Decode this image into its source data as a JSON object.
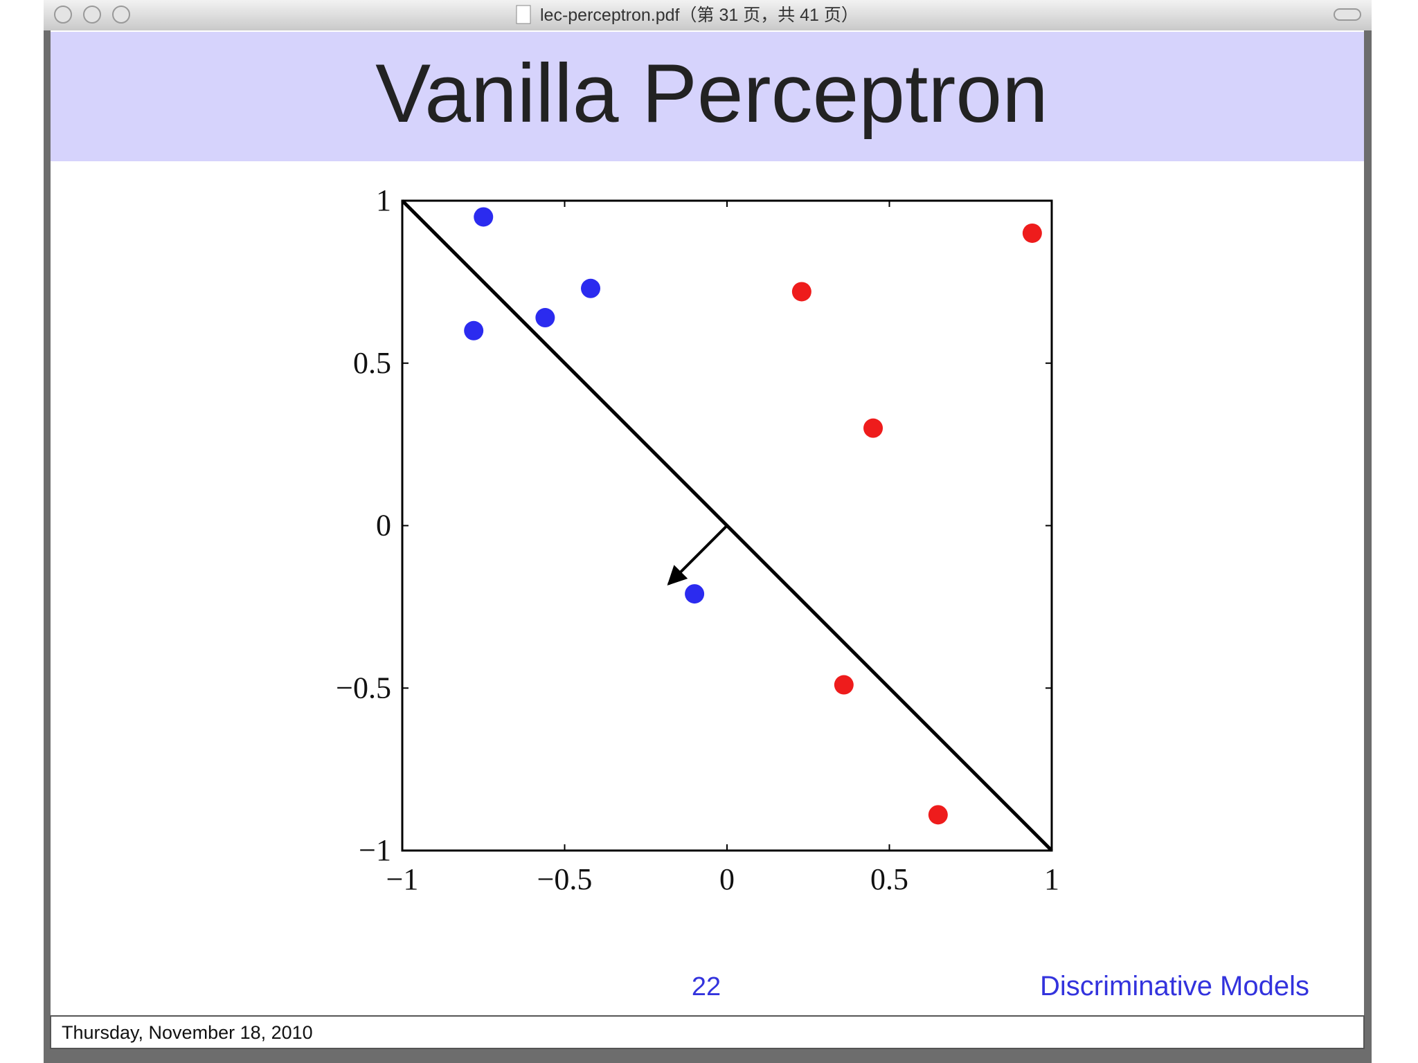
{
  "window": {
    "title": "lec-perceptron.pdf（第 31 页，共 41 页）"
  },
  "slide": {
    "title": "Vanilla Perceptron",
    "page_number": "22",
    "section": "Discriminative Models"
  },
  "footer": {
    "date": "Thursday, November 18, 2010"
  },
  "chart_data": {
    "type": "scatter",
    "series": [
      {
        "color": "#2b2bef",
        "x": [
          -0.75,
          -0.78,
          -0.56,
          -0.42,
          -0.1
        ],
        "y": [
          0.95,
          0.6,
          0.64,
          0.73,
          -0.21
        ]
      },
      {
        "color": "#ee1c1c",
        "x": [
          0.94,
          0.23,
          0.45,
          0.36,
          0.65
        ],
        "y": [
          0.9,
          0.72,
          0.3,
          -0.49,
          -0.89
        ]
      }
    ],
    "boundary": {
      "x": [
        -1,
        1
      ],
      "y": [
        1,
        -1
      ]
    },
    "weight_arrow": {
      "x": [
        0,
        -0.18
      ],
      "y": [
        0,
        -0.18
      ]
    },
    "xlim": [
      -1,
      1
    ],
    "ylim": [
      -1,
      1
    ],
    "xticks": [
      {
        "value": -1,
        "label": "−1"
      },
      {
        "value": -0.5,
        "label": "−0.5"
      },
      0,
      0.5,
      1
    ],
    "yticks": [
      {
        "value": -1,
        "label": "−1"
      },
      {
        "value": -0.5,
        "label": "−0.5"
      },
      0,
      0.5,
      1
    ]
  }
}
